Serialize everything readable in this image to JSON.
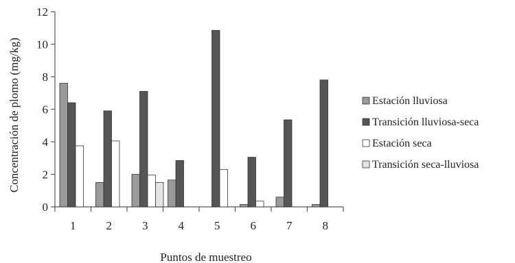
{
  "chart_data": {
    "type": "bar",
    "title": "",
    "xlabel": "Puntos de muestreo",
    "ylabel": "Concentración de plomo (mg/kg)",
    "ylim": [
      0,
      12
    ],
    "yticks": [
      0,
      2,
      4,
      6,
      8,
      10,
      12
    ],
    "categories": [
      "1",
      "2",
      "3",
      "4",
      "5",
      "6",
      "7",
      "8"
    ],
    "legend_position": "right",
    "grid": false,
    "series": [
      {
        "name": "Estación lluviosa",
        "color": "#9a9a9a",
        "values": [
          7.6,
          1.5,
          2.0,
          1.65,
          0,
          0.15,
          0.6,
          0.15
        ]
      },
      {
        "name": "Transición lluviosa-seca",
        "color": "#555555",
        "values": [
          6.4,
          5.9,
          7.1,
          2.85,
          10.85,
          3.05,
          5.35,
          7.8
        ]
      },
      {
        "name": "Estación seca",
        "color": "#ffffff",
        "values": [
          3.75,
          4.05,
          1.95,
          0,
          2.3,
          0.35,
          0,
          0
        ]
      },
      {
        "name": "Transición seca-lluviosa",
        "color": "#e4e4e4",
        "values": [
          0,
          0,
          1.5,
          0,
          0,
          0,
          0,
          0
        ]
      }
    ]
  }
}
